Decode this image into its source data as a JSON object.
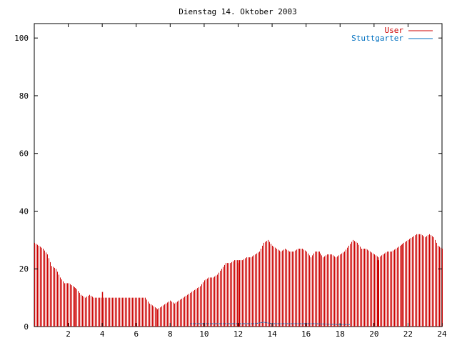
{
  "chart_data": {
    "type": "bar",
    "title": "Dienstag 14. Oktober 2003",
    "xlabel": "",
    "ylabel": "",
    "xlim": [
      0,
      24
    ],
    "ylim": [
      0,
      105
    ],
    "x_ticks": [
      2,
      4,
      6,
      8,
      10,
      12,
      14,
      16,
      18,
      20,
      22,
      24
    ],
    "y_ticks": [
      0,
      20,
      40,
      60,
      80,
      100
    ],
    "grid": false,
    "legend_position": "top-right",
    "series": [
      {
        "name": "User",
        "color": "#cc0000",
        "points": [
          [
            0.0,
            29
          ],
          [
            0.5,
            27
          ],
          [
            0.75,
            25
          ],
          [
            1.0,
            21
          ],
          [
            1.25,
            20
          ],
          [
            1.5,
            17
          ],
          [
            1.75,
            15
          ],
          [
            2.0,
            15
          ],
          [
            2.25,
            14
          ],
          [
            2.5,
            13
          ],
          [
            2.75,
            11
          ],
          [
            3.0,
            10
          ],
          [
            3.25,
            11
          ],
          [
            3.5,
            10
          ],
          [
            4.0,
            10
          ],
          [
            4.5,
            10
          ],
          [
            5.0,
            10
          ],
          [
            5.5,
            10
          ],
          [
            6.0,
            10
          ],
          [
            6.5,
            10
          ],
          [
            6.75,
            8
          ],
          [
            7.0,
            7
          ],
          [
            7.25,
            6
          ],
          [
            7.5,
            7
          ],
          [
            7.75,
            8
          ],
          [
            8.0,
            9
          ],
          [
            8.25,
            8
          ],
          [
            8.5,
            9
          ],
          [
            8.75,
            10
          ],
          [
            9.0,
            11
          ],
          [
            9.25,
            12
          ],
          [
            9.5,
            13
          ],
          [
            9.75,
            14
          ],
          [
            10.0,
            16
          ],
          [
            10.25,
            17
          ],
          [
            10.5,
            17
          ],
          [
            10.75,
            18
          ],
          [
            11.0,
            20
          ],
          [
            11.25,
            22
          ],
          [
            11.5,
            22
          ],
          [
            11.75,
            23
          ],
          [
            12.0,
            23
          ],
          [
            12.25,
            23
          ],
          [
            12.5,
            24
          ],
          [
            12.75,
            24
          ],
          [
            13.0,
            25
          ],
          [
            13.25,
            26
          ],
          [
            13.5,
            29
          ],
          [
            13.75,
            30
          ],
          [
            14.0,
            28
          ],
          [
            14.25,
            27
          ],
          [
            14.5,
            26
          ],
          [
            14.75,
            27
          ],
          [
            15.0,
            26
          ],
          [
            15.25,
            26
          ],
          [
            15.5,
            27
          ],
          [
            15.75,
            27
          ],
          [
            16.0,
            26
          ],
          [
            16.25,
            24
          ],
          [
            16.5,
            26
          ],
          [
            16.75,
            26
          ],
          [
            17.0,
            24
          ],
          [
            17.25,
            25
          ],
          [
            17.5,
            25
          ],
          [
            17.75,
            24
          ],
          [
            18.0,
            25
          ],
          [
            18.25,
            26
          ],
          [
            18.5,
            28
          ],
          [
            18.75,
            30
          ],
          [
            19.0,
            29
          ],
          [
            19.25,
            27
          ],
          [
            19.5,
            27
          ],
          [
            19.75,
            26
          ],
          [
            20.0,
            25
          ],
          [
            20.25,
            24
          ],
          [
            20.5,
            25
          ],
          [
            20.75,
            26
          ],
          [
            21.0,
            26
          ],
          [
            21.25,
            27
          ],
          [
            21.5,
            28
          ],
          [
            21.75,
            29
          ],
          [
            22.0,
            30
          ],
          [
            22.25,
            31
          ],
          [
            22.5,
            32
          ],
          [
            22.75,
            32
          ],
          [
            23.0,
            31
          ],
          [
            23.25,
            32
          ],
          [
            23.5,
            31
          ],
          [
            23.75,
            28
          ],
          [
            24.0,
            27
          ]
        ],
        "spikes": [
          [
            4.0,
            12
          ],
          [
            12.0,
            22
          ],
          [
            20.2,
            23
          ]
        ]
      },
      {
        "name": "Stuttgarter",
        "color": "#0070c0",
        "segments": [
          [
            9.2,
            1
          ],
          [
            12.0,
            1
          ],
          [
            13.0,
            1
          ],
          [
            13.5,
            1.5
          ],
          [
            14.0,
            1
          ],
          [
            16.5,
            1
          ],
          [
            18.0,
            0.7
          ],
          [
            18.6,
            0.7
          ]
        ]
      }
    ]
  }
}
